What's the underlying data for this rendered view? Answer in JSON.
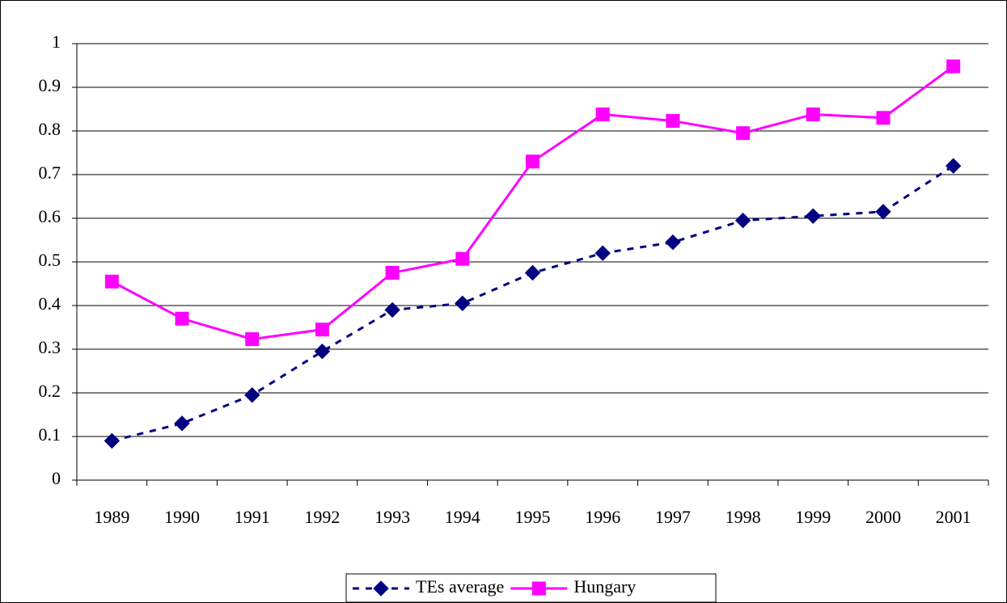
{
  "chart_data": {
    "type": "line",
    "categories": [
      "1989",
      "1990",
      "1991",
      "1992",
      "1993",
      "1994",
      "1995",
      "1996",
      "1997",
      "1998",
      "1999",
      "2000",
      "2001"
    ],
    "series": [
      {
        "name": "TEs average",
        "color": "#000080",
        "marker": "diamond",
        "dash": true,
        "values": [
          0.09,
          0.13,
          0.195,
          0.295,
          0.39,
          0.405,
          0.475,
          0.52,
          0.545,
          0.595,
          0.605,
          0.615,
          0.72
        ]
      },
      {
        "name": "Hungary",
        "color": "#ff00ff",
        "marker": "square",
        "dash": false,
        "values": [
          0.455,
          0.37,
          0.323,
          0.345,
          0.475,
          0.507,
          0.73,
          0.838,
          0.823,
          0.795,
          0.838,
          0.83,
          0.948
        ]
      }
    ],
    "ylim": [
      0,
      1
    ],
    "yticks": [
      0,
      0.1,
      0.2,
      0.3,
      0.4,
      0.5,
      0.6,
      0.7,
      0.8,
      0.9,
      1
    ],
    "grid": true,
    "legend": "bottom"
  }
}
